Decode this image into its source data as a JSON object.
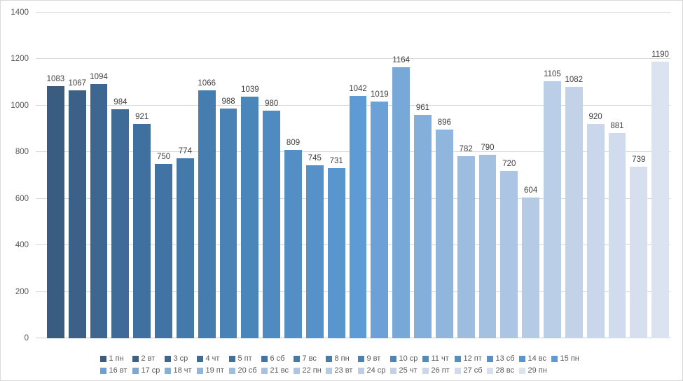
{
  "chart_data": {
    "type": "bar",
    "title": "",
    "xlabel": "",
    "ylabel": "",
    "categories": [
      "1 пн",
      "2 вт",
      "3 ср",
      "4 чт",
      "5 пт",
      "6 сб",
      "7 вс",
      "8 пн",
      "9 вт",
      "10 ср",
      "11 чт",
      "12 пт",
      "13 сб",
      "14 вс",
      "15 пн",
      "16 вт",
      "17 ср",
      "18 чт",
      "19 пт",
      "20 сб",
      "21 вс",
      "22 пн",
      "23 вт",
      "24 ср",
      "25 чт",
      "26 пт",
      "27 сб",
      "28 вс",
      "29 пн"
    ],
    "values": [
      1083,
      1067,
      1094,
      984,
      921,
      750,
      774,
      1066,
      988,
      1039,
      980,
      809,
      745,
      731,
      1042,
      1019,
      1164,
      961,
      896,
      782,
      790,
      720,
      604,
      1105,
      1082,
      920,
      881,
      739,
      1190
    ],
    "bar_colors": [
      "#3A5C80",
      "#3B6188",
      "#3D6690",
      "#3E6B97",
      "#3F709F",
      "#4174A5",
      "#4479AA",
      "#467DB0",
      "#4982B5",
      "#4B86BB",
      "#4F8AC0",
      "#538EC5",
      "#5692C9",
      "#5A96CE",
      "#5E9AD3",
      "#6BA1D6",
      "#77A8D8",
      "#84AFDB",
      "#90B6DD",
      "#9DBDE0",
      "#A5C1E2",
      "#ACC5E4",
      "#B4CAE5",
      "#BBCEE7",
      "#C3D2E9",
      "#C9D6EB",
      "#D0DBED",
      "#D6DFEE",
      "#DCE3F0"
    ],
    "ylim": [
      0,
      1400
    ],
    "yticks": [
      0,
      200,
      400,
      600,
      800,
      1000,
      1200,
      1400
    ],
    "grid": true,
    "data_labels": true,
    "legend_position": "bottom",
    "legend_columns": 15,
    "patterned_bar": {
      "category": "23 вт",
      "index": 22
    },
    "colors": {
      "background": "#ffffff",
      "chart_border": "#d9d9d9",
      "gridline": "#d9d9d9",
      "axis_label": "#595959",
      "value_label": "#404040",
      "legend_text": "#595959"
    }
  }
}
